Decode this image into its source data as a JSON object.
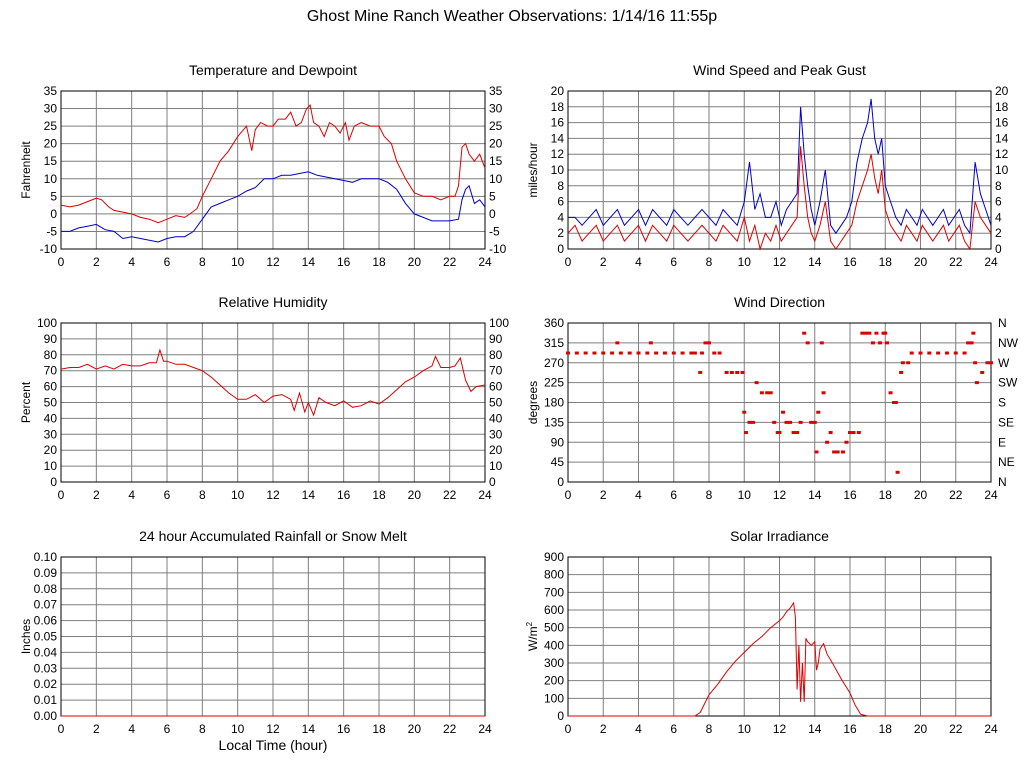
{
  "page": {
    "title": "Ghost Mine Ranch Weather Observations: 1/14/16 11:55p"
  },
  "colors": {
    "red": "#dd0000",
    "blue": "#0000cc",
    "grid": "#7f7f7f"
  },
  "chart_data": [
    {
      "id": "temp",
      "type": "line",
      "title": "Temperature and Dewpoint",
      "ylabel": "Fahrenheit",
      "xlabel": "",
      "xlim": [
        0,
        24
      ],
      "ylim": [
        -10,
        35
      ],
      "yticks": [
        -10,
        -5,
        0,
        5,
        10,
        15,
        20,
        25,
        30,
        35
      ],
      "right_axis": true,
      "grid": true,
      "series": [
        {
          "color": "#dd0000",
          "x": [
            0,
            0.5,
            1,
            1.5,
            2,
            2.3,
            2.7,
            3,
            3.5,
            4,
            4.5,
            5,
            5.5,
            6,
            6.5,
            7,
            7.3,
            7.7,
            8,
            8.5,
            9,
            9.5,
            10,
            10.5,
            10.8,
            11,
            11.3,
            11.7,
            12,
            12.3,
            12.7,
            13,
            13.3,
            13.6,
            13.9,
            14.1,
            14.3,
            14.6,
            14.9,
            15.2,
            15.5,
            15.8,
            16.1,
            16.3,
            16.6,
            17,
            17.5,
            18,
            18.3,
            18.7,
            19,
            19.5,
            20,
            20.5,
            21,
            21.5,
            22,
            22.3,
            22.5,
            22.7,
            22.9,
            23.1,
            23.4,
            23.7,
            24
          ],
          "y": [
            2.5,
            2,
            2.5,
            3.5,
            4.5,
            4,
            2,
            1,
            0.5,
            0,
            -1,
            -1.5,
            -2.5,
            -1.5,
            -0.5,
            -1,
            0,
            1.5,
            5,
            10,
            15,
            18,
            22,
            25,
            18,
            24,
            26,
            25,
            25,
            27,
            27,
            29,
            25,
            26,
            30,
            31,
            26,
            25,
            22,
            26,
            25,
            23,
            26,
            21,
            25,
            26,
            25,
            25,
            22,
            20,
            15,
            10,
            6,
            5,
            5,
            4,
            5,
            5,
            8,
            19,
            20,
            17,
            15,
            17,
            13
          ]
        },
        {
          "color": "#0000cc",
          "x": [
            0,
            0.5,
            1,
            1.5,
            2,
            2.5,
            3,
            3.5,
            4,
            4.5,
            5,
            5.5,
            6,
            6.5,
            7,
            7.5,
            8,
            8.5,
            9,
            9.5,
            10,
            10.5,
            11,
            11.5,
            12,
            12.5,
            13,
            13.5,
            14,
            14.5,
            15,
            15.5,
            16,
            16.5,
            17,
            17.5,
            18,
            18.5,
            19,
            19.5,
            20,
            20.5,
            21,
            21.5,
            22,
            22.5,
            22.7,
            22.9,
            23.1,
            23.4,
            23.7,
            24
          ],
          "y": [
            -5,
            -5,
            -4,
            -3.5,
            -3,
            -4.5,
            -5,
            -7,
            -6.5,
            -7,
            -7.5,
            -8,
            -7,
            -6.5,
            -6.5,
            -5,
            -1.5,
            2,
            3,
            4,
            5,
            6.5,
            7.5,
            10,
            10,
            11,
            11,
            11.5,
            12,
            11,
            10.5,
            10,
            9.5,
            9,
            10,
            10,
            10,
            9,
            7,
            3,
            0,
            -1,
            -2,
            -2,
            -2,
            -1.5,
            4,
            7,
            8,
            3,
            4,
            2
          ]
        }
      ]
    },
    {
      "id": "wind",
      "type": "line",
      "title": "Wind Speed and Peak Gust",
      "ylabel": "miles/hour",
      "xlabel": "",
      "xlim": [
        0,
        24
      ],
      "ylim": [
        0,
        20
      ],
      "yticks": [
        0,
        2,
        4,
        6,
        8,
        10,
        12,
        14,
        16,
        18,
        20
      ],
      "right_axis": true,
      "grid": true,
      "series": [
        {
          "color": "#dd0000",
          "x": [
            0,
            0.4,
            0.8,
            1.2,
            1.6,
            2,
            2.4,
            2.8,
            3.2,
            3.6,
            4,
            4.4,
            4.8,
            5.2,
            5.6,
            6,
            6.4,
            6.8,
            7.2,
            7.6,
            8,
            8.4,
            8.8,
            9.2,
            9.6,
            10,
            10.3,
            10.6,
            10.9,
            11.2,
            11.5,
            11.8,
            12.1,
            12.4,
            12.7,
            13,
            13.2,
            13.4,
            13.6,
            13.8,
            14,
            14.3,
            14.6,
            14.9,
            15.2,
            15.5,
            15.8,
            16.1,
            16.4,
            16.7,
            17,
            17.2,
            17.4,
            17.6,
            17.8,
            18,
            18.3,
            18.6,
            18.9,
            19.2,
            19.5,
            19.8,
            20.1,
            20.4,
            20.7,
            21,
            21.3,
            21.6,
            21.9,
            22.2,
            22.5,
            22.8,
            23.1,
            23.4,
            23.7,
            24
          ],
          "y": [
            2,
            3,
            1,
            2,
            3,
            1,
            2,
            3,
            1,
            2,
            3,
            1,
            3,
            2,
            1,
            3,
            2,
            1,
            2,
            3,
            2,
            1,
            3,
            2,
            1,
            4,
            1,
            3,
            0,
            2,
            1,
            3,
            1,
            2,
            3,
            4,
            13,
            8,
            4,
            2,
            1,
            3,
            6,
            1,
            0,
            1,
            2,
            3,
            6,
            8,
            10,
            12,
            9,
            7,
            10,
            5,
            3,
            2,
            1,
            3,
            2,
            1,
            3,
            2,
            1,
            2,
            3,
            1,
            2,
            3,
            1,
            0,
            6,
            4,
            3,
            2
          ]
        },
        {
          "color": "#0000cc",
          "x": [
            0,
            0.4,
            0.8,
            1.2,
            1.6,
            2,
            2.4,
            2.8,
            3.2,
            3.6,
            4,
            4.4,
            4.8,
            5.2,
            5.6,
            6,
            6.4,
            6.8,
            7.2,
            7.6,
            8,
            8.4,
            8.8,
            9.2,
            9.6,
            10,
            10.3,
            10.6,
            10.9,
            11.2,
            11.5,
            11.8,
            12.1,
            12.4,
            12.7,
            13,
            13.2,
            13.4,
            13.6,
            13.8,
            14,
            14.3,
            14.6,
            14.9,
            15.2,
            15.5,
            15.8,
            16.1,
            16.4,
            16.7,
            17,
            17.2,
            17.4,
            17.6,
            17.8,
            18,
            18.3,
            18.6,
            18.9,
            19.2,
            19.5,
            19.8,
            20.1,
            20.4,
            20.7,
            21,
            21.3,
            21.6,
            21.9,
            22.2,
            22.5,
            22.8,
            23.1,
            23.4,
            23.7,
            24
          ],
          "y": [
            4,
            4,
            3,
            4,
            5,
            3,
            4,
            5,
            3,
            4,
            5,
            3,
            5,
            4,
            3,
            5,
            4,
            3,
            4,
            5,
            4,
            3,
            5,
            4,
            3,
            6,
            11,
            5,
            7,
            4,
            4,
            6,
            3,
            5,
            6,
            7,
            18,
            12,
            8,
            5,
            3,
            6,
            10,
            3,
            2,
            3,
            4,
            6,
            11,
            14,
            16,
            19,
            14,
            12,
            14,
            8,
            6,
            4,
            3,
            5,
            4,
            3,
            5,
            4,
            3,
            4,
            5,
            3,
            4,
            5,
            3,
            2,
            11,
            7,
            5,
            3
          ]
        }
      ]
    },
    {
      "id": "rh",
      "type": "line",
      "title": "Relative Humidity",
      "ylabel": "Percent",
      "xlabel": "",
      "xlim": [
        0,
        24
      ],
      "ylim": [
        0,
        100
      ],
      "yticks": [
        0,
        10,
        20,
        30,
        40,
        50,
        60,
        70,
        80,
        90,
        100
      ],
      "right_axis": true,
      "grid": true,
      "series": [
        {
          "color": "#dd0000",
          "x": [
            0,
            0.5,
            1,
            1.5,
            2,
            2.5,
            3,
            3.5,
            4,
            4.5,
            5,
            5.4,
            5.6,
            5.8,
            6,
            6.5,
            7,
            7.5,
            8,
            8.5,
            9,
            9.5,
            10,
            10.5,
            11,
            11.5,
            12,
            12.5,
            13,
            13.2,
            13.5,
            13.8,
            14,
            14.3,
            14.6,
            15,
            15.5,
            16,
            16.5,
            17,
            17.5,
            18,
            18.5,
            19,
            19.5,
            20,
            20.5,
            21,
            21.2,
            21.5,
            22,
            22.3,
            22.6,
            22.9,
            23.2,
            23.5,
            24
          ],
          "y": [
            71,
            72,
            72,
            74,
            71,
            73,
            71,
            74,
            73,
            73,
            75,
            75,
            83,
            76,
            76,
            74,
            74,
            72,
            70,
            66,
            61,
            56,
            52,
            52,
            55,
            50,
            54,
            55,
            52,
            45,
            56,
            44,
            50,
            42,
            53,
            50,
            48,
            51,
            47,
            48,
            51,
            49,
            53,
            58,
            63,
            66,
            70,
            73,
            79,
            72,
            72,
            73,
            78,
            64,
            57,
            60,
            61
          ]
        }
      ]
    },
    {
      "id": "dir",
      "type": "scatter",
      "title": "Wind Direction",
      "ylabel": "degrees",
      "xlabel": "",
      "xlim": [
        0,
        24
      ],
      "ylim": [
        0,
        360
      ],
      "yticks": [
        0,
        45,
        90,
        135,
        180,
        225,
        270,
        315,
        360
      ],
      "right_labels": [
        "N",
        "NE",
        "E",
        "SE",
        "S",
        "SW",
        "W",
        "NW",
        "N"
      ],
      "grid": true,
      "series": [
        {
          "color": "#dd0000",
          "x": [
            0,
            0.5,
            1,
            1.5,
            2,
            2.5,
            2.8,
            3,
            3.5,
            4,
            4.5,
            4.7,
            5,
            5.5,
            6,
            6.5,
            7,
            7.2,
            7.5,
            7.6,
            7.8,
            8,
            8.3,
            8.6,
            9,
            9.3,
            9.6,
            9.9,
            10,
            10.1,
            10.3,
            10.5,
            10.7,
            11,
            11.3,
            11.5,
            11.7,
            11.9,
            12,
            12.2,
            12.4,
            12.6,
            12.8,
            13,
            13.2,
            13.4,
            13.6,
            13.8,
            14,
            14.1,
            14.2,
            14.4,
            14.5,
            14.7,
            14.9,
            15.1,
            15.3,
            15.6,
            15.8,
            16,
            16.2,
            16.5,
            16.7,
            16.9,
            17.1,
            17.3,
            17.5,
            17.7,
            17.9,
            18,
            18.1,
            18.3,
            18.5,
            18.6,
            18.7,
            18.9,
            19,
            19.3,
            19.5,
            20,
            20.5,
            21,
            21.5,
            22,
            22.5,
            22.7,
            22.9,
            23,
            23.1,
            23.2,
            23.5,
            23.8,
            24
          ],
          "y": [
            292,
            292,
            292,
            292,
            292,
            292,
            315,
            292,
            292,
            292,
            292,
            315,
            292,
            292,
            292,
            292,
            292,
            292,
            248,
            292,
            315,
            315,
            292,
            292,
            248,
            248,
            248,
            248,
            158,
            112,
            135,
            135,
            225,
            202,
            202,
            202,
            135,
            112,
            112,
            158,
            135,
            135,
            112,
            112,
            135,
            337,
            315,
            135,
            135,
            68,
            158,
            315,
            202,
            90,
            112,
            68,
            68,
            68,
            90,
            112,
            112,
            112,
            337,
            337,
            337,
            315,
            337,
            315,
            337,
            337,
            315,
            202,
            180,
            180,
            22,
            248,
            270,
            270,
            292,
            292,
            292,
            292,
            292,
            292,
            292,
            315,
            315,
            337,
            270,
            225,
            248,
            270,
            270
          ]
        }
      ]
    },
    {
      "id": "rain",
      "type": "line",
      "title": "24 hour Accumulated Rainfall or Snow Melt",
      "ylabel": "Inches",
      "xlabel": "Local Time (hour)",
      "xlim": [
        0,
        24
      ],
      "ylim": [
        0,
        0.1
      ],
      "yticks": [
        0,
        0.01,
        0.02,
        0.03,
        0.04,
        0.05,
        0.06,
        0.07,
        0.08,
        0.09,
        0.1
      ],
      "ytick_labels": [
        "0.00",
        "0.01",
        "0.02",
        "0.03",
        "0.04",
        "0.05",
        "0.06",
        "0.07",
        "0.08",
        "0.09",
        "0.10"
      ],
      "right_axis": false,
      "grid": true,
      "series": [
        {
          "color": "#dd0000",
          "x": [
            0,
            24
          ],
          "y": [
            0,
            0
          ]
        }
      ]
    },
    {
      "id": "solar",
      "type": "line",
      "title": "Solar Irradiance",
      "ylabel": "W/m",
      "ylabel_sup": "2",
      "xlabel": "",
      "xlim": [
        0,
        24
      ],
      "ylim": [
        0,
        900
      ],
      "yticks": [
        0,
        100,
        200,
        300,
        400,
        500,
        600,
        700,
        800,
        900
      ],
      "right_axis": false,
      "grid": true,
      "series": [
        {
          "color": "#dd0000",
          "x": [
            0,
            7.2,
            7.5,
            7.8,
            8,
            8.5,
            9,
            9.5,
            10,
            10.5,
            11,
            11.5,
            12,
            12.2,
            12.4,
            12.6,
            12.8,
            12.9,
            13,
            13.1,
            13.2,
            13.3,
            13.4,
            13.5,
            13.6,
            13.8,
            14,
            14.1,
            14.2,
            14.3,
            14.5,
            14.7,
            15,
            15.5,
            16,
            16.3,
            16.6,
            17,
            24
          ],
          "y": [
            0,
            0,
            20,
            80,
            120,
            180,
            250,
            310,
            360,
            410,
            450,
            500,
            540,
            560,
            590,
            610,
            640,
            560,
            150,
            400,
            80,
            300,
            80,
            440,
            420,
            400,
            420,
            260,
            300,
            380,
            410,
            350,
            300,
            210,
            130,
            60,
            10,
            0,
            0
          ]
        }
      ]
    }
  ]
}
